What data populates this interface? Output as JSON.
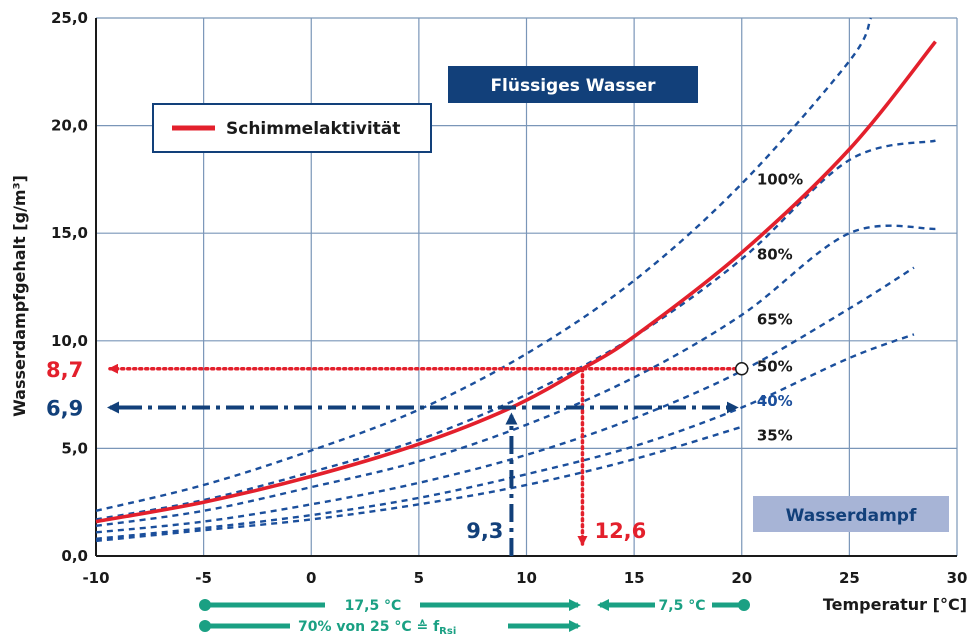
{
  "chart_data": {
    "type": "line",
    "xlabel": "Temperatur [°C]",
    "ylabel": "Wasserdampfgehalt [g/m³]",
    "xlim": [
      -10,
      30
    ],
    "ylim": [
      0,
      25
    ],
    "x_ticks": [
      -10,
      -5,
      0,
      5,
      10,
      15,
      20,
      25,
      30
    ],
    "x_tick_labels": [
      "-10",
      "-5",
      "0",
      "5",
      "10",
      "15",
      "20",
      "25",
      "30"
    ],
    "y_ticks": [
      0,
      5,
      10,
      15,
      20,
      25
    ],
    "y_tick_labels": [
      "0,0",
      "5,0",
      "10,0",
      "15,0",
      "20,0",
      "25,0"
    ],
    "grid": true,
    "series": [
      {
        "name": "100%",
        "style": "dashed",
        "color": "#1b4f9c",
        "x": [
          -10,
          -5,
          0,
          5,
          10,
          15,
          20,
          25,
          26
        ],
        "y": [
          2.1,
          3.3,
          4.9,
          6.8,
          9.4,
          12.8,
          17.3,
          23.0,
          25.0
        ]
      },
      {
        "name": "80%",
        "style": "dashed",
        "color": "#1b4f9c",
        "x": [
          -10,
          -5,
          0,
          5,
          10,
          15,
          20,
          25,
          29
        ],
        "y": [
          1.7,
          2.6,
          3.9,
          5.4,
          7.5,
          10.2,
          13.8,
          18.4,
          19.3
        ]
      },
      {
        "name": "65%",
        "style": "dashed",
        "color": "#1b4f9c",
        "x": [
          -10,
          -5,
          0,
          5,
          10,
          15,
          20,
          25,
          29
        ],
        "y": [
          1.4,
          2.1,
          3.2,
          4.4,
          6.1,
          8.3,
          11.2,
          15.0,
          15.2
        ]
      },
      {
        "name": "50%",
        "style": "dashed",
        "color": "#1b4f9c",
        "x": [
          -10,
          -5,
          0,
          5,
          10,
          15,
          20,
          25,
          28
        ],
        "y": [
          1.1,
          1.6,
          2.4,
          3.4,
          4.7,
          6.4,
          8.6,
          11.5,
          13.4
        ]
      },
      {
        "name": "40%",
        "style": "dashed",
        "color": "#1b4f9c",
        "x": [
          -10,
          -5,
          0,
          5,
          10,
          15,
          20,
          25,
          28
        ],
        "y": [
          0.8,
          1.3,
          1.9,
          2.7,
          3.8,
          5.1,
          6.9,
          9.2,
          10.3
        ]
      },
      {
        "name": "35%",
        "style": "dashed",
        "color": "#1b4f9c",
        "x": [
          -10,
          -5,
          0,
          5,
          10,
          15,
          20
        ],
        "y": [
          0.7,
          1.2,
          1.7,
          2.4,
          3.3,
          4.5,
          6.0
        ]
      },
      {
        "name": "Schimmelaktivität",
        "style": "solid",
        "color": "#e3202c",
        "x": [
          -10,
          -5,
          0,
          5,
          9.3,
          12.6,
          15,
          20,
          25,
          29
        ],
        "y": [
          1.6,
          2.5,
          3.7,
          5.2,
          6.9,
          8.7,
          10.2,
          14.1,
          18.9,
          23.9
        ]
      }
    ],
    "curve_labels": [
      {
        "text": "100%",
        "color": "#1a1a1a",
        "x": 20.7,
        "y": 17.5
      },
      {
        "text": "80%",
        "color": "#1a1a1a",
        "x": 20.7,
        "y": 14.0
      },
      {
        "text": "65%",
        "color": "#1a1a1a",
        "x": 20.7,
        "y": 11.0
      },
      {
        "text": "50%",
        "color": "#1a1a1a",
        "x": 20.7,
        "y": 8.8
      },
      {
        "text": "40%",
        "color": "#1b4f9c",
        "x": 20.7,
        "y": 7.2
      },
      {
        "text": "35%",
        "color": "#1a1a1a",
        "x": 20.7,
        "y": 5.6
      }
    ],
    "annotations": {
      "red_value_y": "8,7",
      "blue_value_y": "6,9",
      "blue_value_x": "9,3",
      "red_value_x": "12,6",
      "point": {
        "x": 20,
        "y": 8.7
      },
      "red_h_line": {
        "y": 8.7,
        "x_from": 20,
        "x_to": -10
      },
      "red_v_line": {
        "x": 12.6,
        "y_from": 8.7,
        "y_to": 0
      },
      "blue_h_line": {
        "y": 6.9,
        "x_from": -10,
        "x_to": 20
      },
      "blue_v_line": {
        "x": 9.3,
        "y_from": 0,
        "y_to": 6.9
      }
    },
    "boxes": {
      "liquid": "Flüssiges Wasser",
      "vapor": "Wasserdampf",
      "legend": "Schimmelaktivität"
    },
    "bottom_arrows": {
      "top_left": "17,5 °C",
      "top_right": "7,5 °C",
      "bottom_left": "70% von 25 °C ≙ f",
      "bottom_left_sub": "Rsi"
    }
  },
  "colors": {
    "grid": "#7a96b8",
    "blue_dark": "#12407a",
    "blue_curve": "#1b4f9c",
    "red": "#e3202c",
    "teal": "#1aa083",
    "liquid_box": "#12407a",
    "vapor_box": "#a7b4d6"
  }
}
